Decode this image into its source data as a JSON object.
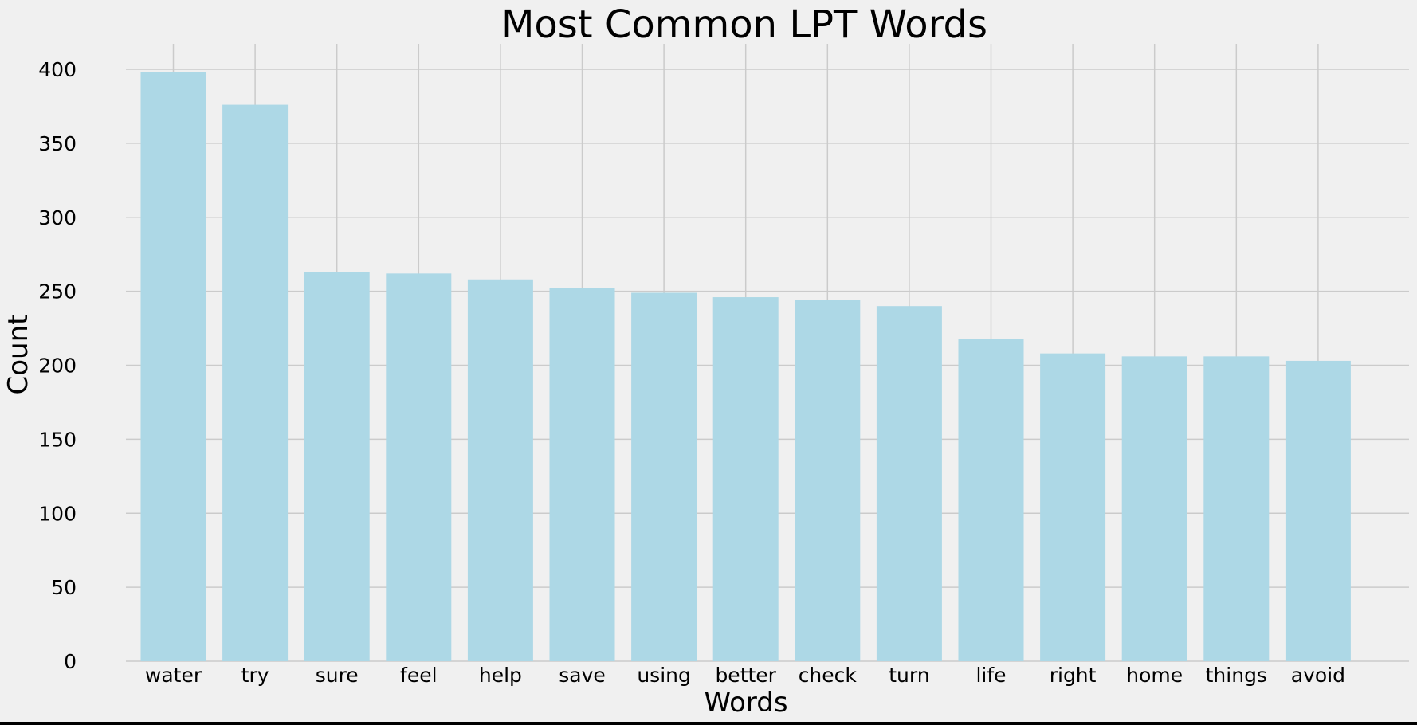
{
  "chart_data": {
    "type": "bar",
    "title": "Most Common LPT Words",
    "xlabel": "Words",
    "ylabel": "Count",
    "categories": [
      "water",
      "try",
      "sure",
      "feel",
      "help",
      "save",
      "using",
      "better",
      "check",
      "turn",
      "life",
      "right",
      "home",
      "things",
      "avoid"
    ],
    "values": [
      398,
      376,
      263,
      262,
      258,
      252,
      249,
      246,
      244,
      240,
      218,
      208,
      206,
      206,
      203
    ],
    "ylim": [
      0,
      400
    ],
    "yticks": [
      0,
      50,
      100,
      150,
      200,
      250,
      300,
      350,
      400
    ],
    "grid": true,
    "bar_color": "#add8e6",
    "background_color": "#f0f0f0",
    "grid_color": "#cbcbcb"
  }
}
